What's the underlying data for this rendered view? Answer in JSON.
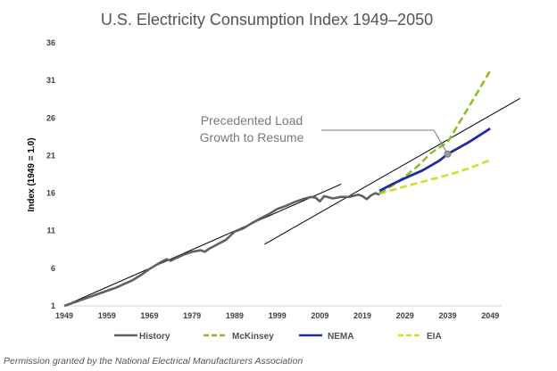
{
  "footnote": "Permission granted by the National Electrical Manufacturers Association",
  "colors": {
    "history": "#606060",
    "mckinsey": "#8cc02a",
    "nema": "#1f2d9e",
    "eia": "#cfe02a",
    "trend": "#000000",
    "annotation": "#7a7a7a"
  },
  "chart_data": {
    "type": "line",
    "title": "U.S. Electricity Consumption Index 1949–2050",
    "xlabel": "",
    "ylabel": "Index (1949 = 1.0)",
    "xlim": [
      1949,
      2050
    ],
    "ylim": [
      1,
      36
    ],
    "xticks": [
      1949,
      1959,
      1969,
      1979,
      1989,
      1999,
      2009,
      2019,
      2029,
      2039,
      2049
    ],
    "yticks": [
      1,
      6,
      11,
      16,
      21,
      26,
      31,
      36
    ],
    "grid": false,
    "legend_position": "bottom",
    "annotation": {
      "lines": [
        "Precedented Load",
        "Growth to Resume"
      ],
      "points_to": [
        2039,
        21.2
      ]
    },
    "trend_lines": [
      {
        "x": [
          1949,
          2014
        ],
        "y": [
          1.0,
          17.2
        ]
      },
      {
        "x": [
          1996,
          2056
        ],
        "y": [
          9.2,
          28.6
        ]
      }
    ],
    "series": [
      {
        "name": "History",
        "style": "solid",
        "x": [
          1949,
          1951,
          1953,
          1955,
          1957,
          1959,
          1961,
          1963,
          1965,
          1967,
          1969,
          1971,
          1973,
          1974,
          1975,
          1977,
          1979,
          1981,
          1982,
          1983,
          1985,
          1987,
          1989,
          1991,
          1993,
          1995,
          1997,
          1999,
          2001,
          2003,
          2005,
          2007,
          2008,
          2009,
          2010,
          2012,
          2014,
          2016,
          2018,
          2019,
          2020,
          2021,
          2022,
          2023
        ],
        "y": [
          1.0,
          1.4,
          1.8,
          2.2,
          2.6,
          3.0,
          3.4,
          3.9,
          4.4,
          5.1,
          5.9,
          6.6,
          7.2,
          7.0,
          7.3,
          7.8,
          8.2,
          8.4,
          8.2,
          8.6,
          9.2,
          9.8,
          10.9,
          11.3,
          12.0,
          12.6,
          13.2,
          13.9,
          14.3,
          14.8,
          15.2,
          15.5,
          15.4,
          14.9,
          15.6,
          15.3,
          15.5,
          15.5,
          15.8,
          15.6,
          15.2,
          15.7,
          16.0,
          15.8
        ]
      },
      {
        "name": "McKinsey",
        "style": "dashed",
        "x": [
          2023,
          2026,
          2029,
          2032,
          2035,
          2039,
          2044,
          2049
        ],
        "y": [
          16.0,
          17.0,
          18.2,
          19.6,
          21.3,
          22.8,
          27.5,
          32.3
        ]
      },
      {
        "name": "NEMA",
        "style": "solid",
        "x": [
          2023,
          2026,
          2029,
          2033,
          2037,
          2039,
          2044,
          2049
        ],
        "y": [
          16.3,
          17.2,
          18.0,
          19.0,
          20.3,
          21.2,
          22.8,
          24.6
        ]
      },
      {
        "name": "EIA",
        "style": "dashed",
        "x": [
          2023,
          2029,
          2035,
          2039,
          2044,
          2049
        ],
        "y": [
          15.9,
          16.9,
          17.8,
          18.4,
          19.3,
          20.4
        ]
      }
    ]
  }
}
